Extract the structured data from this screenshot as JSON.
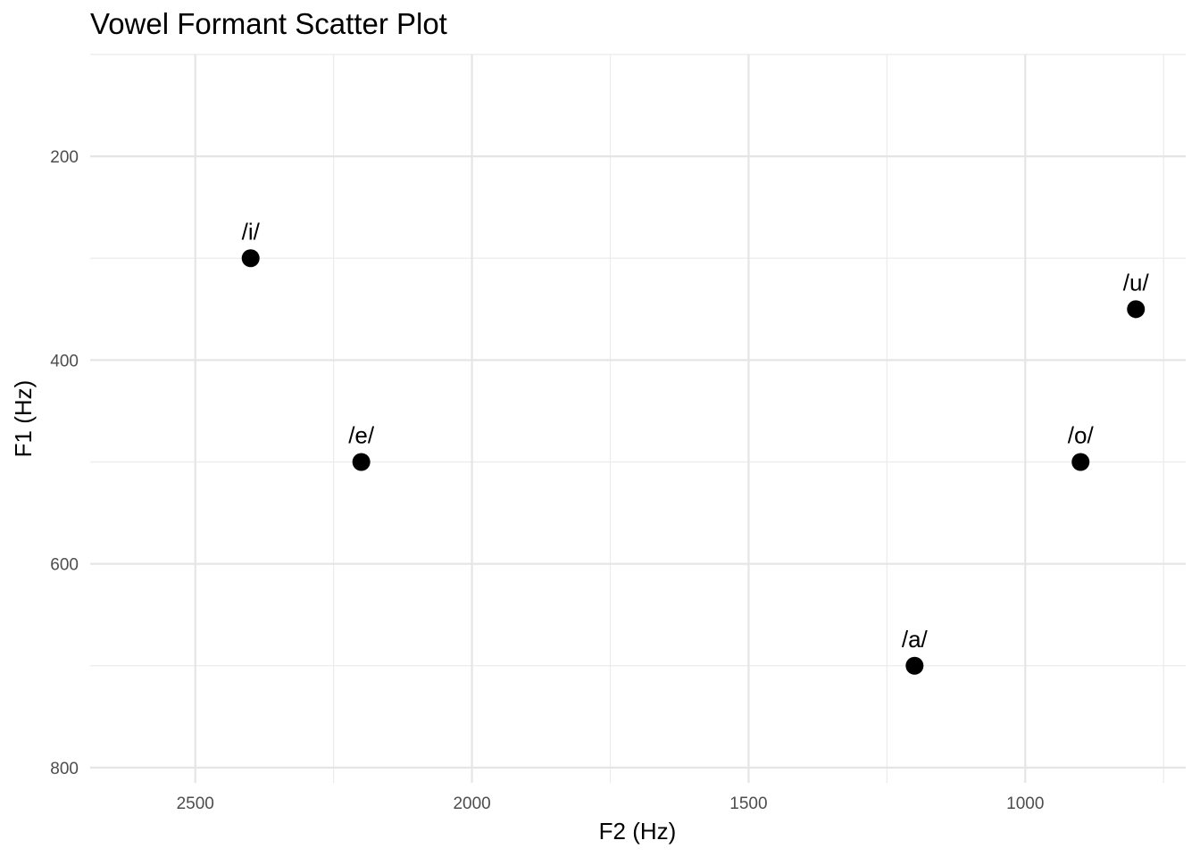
{
  "chart_data": {
    "type": "scatter",
    "title": "Vowel Formant Scatter Plot",
    "xlabel": "F2 (Hz)",
    "ylabel": "F1 (Hz)",
    "x_reversed": true,
    "y_reversed": true,
    "xlim": [
      2690,
      710
    ],
    "ylim": [
      100,
      815
    ],
    "x_ticks": [
      2500,
      2000,
      1500,
      1000
    ],
    "x_tick_labels": [
      "2500",
      "2000",
      "1500",
      "1000"
    ],
    "y_ticks": [
      200,
      400,
      600,
      800
    ],
    "y_tick_labels": [
      "200",
      "400",
      "600",
      "800"
    ],
    "x_minor_ticks": [
      2250,
      1750,
      1250,
      750
    ],
    "y_minor_ticks": [
      100,
      300,
      500,
      700
    ],
    "grid": true,
    "legend": "none",
    "point_color": "#000000",
    "points": [
      {
        "label": "/i/",
        "x": 2400,
        "y": 300
      },
      {
        "label": "/e/",
        "x": 2200,
        "y": 500
      },
      {
        "label": "/a/",
        "x": 1200,
        "y": 700
      },
      {
        "label": "/o/",
        "x": 900,
        "y": 500
      },
      {
        "label": "/u/",
        "x": 800,
        "y": 350
      }
    ]
  }
}
